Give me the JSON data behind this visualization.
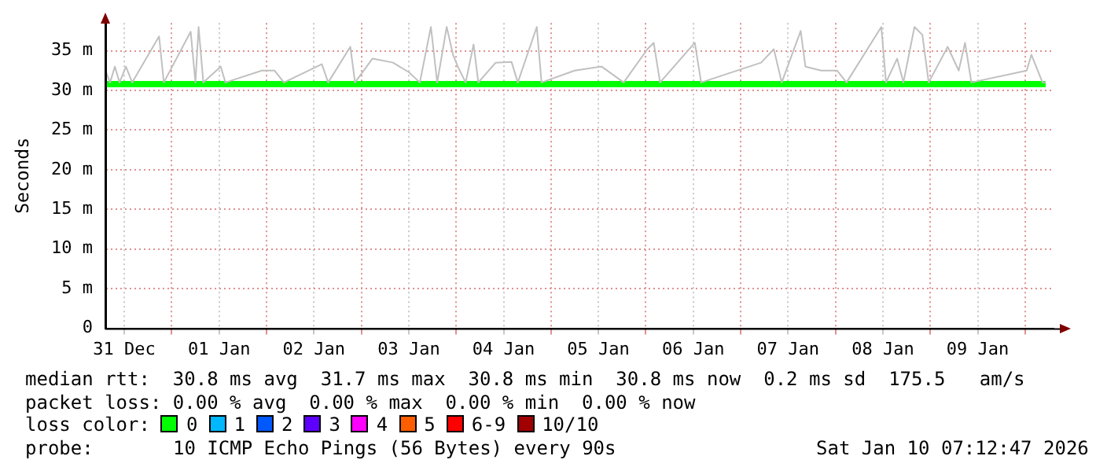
{
  "chart_data": {
    "type": "line",
    "ylabel": "Seconds",
    "xlim": [
      "2025-12-31T07:12",
      "2026-01-10T07:12"
    ],
    "xticks": [
      {
        "value": "2025-12-31T12:00",
        "label": "31 Dec"
      },
      {
        "value": "2026-01-01T00:00",
        "label": null
      },
      {
        "value": "2026-01-01T12:00",
        "label": "01 Jan"
      },
      {
        "value": "2026-01-02T00:00",
        "label": null
      },
      {
        "value": "2026-01-02T12:00",
        "label": "02 Jan"
      },
      {
        "value": "2026-01-03T00:00",
        "label": null
      },
      {
        "value": "2026-01-03T12:00",
        "label": "03 Jan"
      },
      {
        "value": "2026-01-04T00:00",
        "label": null
      },
      {
        "value": "2026-01-04T12:00",
        "label": "04 Jan"
      },
      {
        "value": "2026-01-05T00:00",
        "label": null
      },
      {
        "value": "2026-01-05T12:00",
        "label": "05 Jan"
      },
      {
        "value": "2026-01-06T00:00",
        "label": null
      },
      {
        "value": "2026-01-06T12:00",
        "label": "06 Jan"
      },
      {
        "value": "2026-01-07T00:00",
        "label": null
      },
      {
        "value": "2026-01-07T12:00",
        "label": "07 Jan"
      },
      {
        "value": "2026-01-08T00:00",
        "label": null
      },
      {
        "value": "2026-01-08T12:00",
        "label": "08 Jan"
      },
      {
        "value": "2026-01-09T00:00",
        "label": null
      },
      {
        "value": "2026-01-09T12:00",
        "label": "09 Jan"
      },
      {
        "value": "2026-01-10T00:00",
        "label": null
      }
    ],
    "ylim": [
      0,
      38.5
    ],
    "yticks": [
      0,
      {
        "value": 5,
        "label": "5 m"
      },
      {
        "value": 10,
        "label": "10 m"
      },
      {
        "value": 15,
        "label": "15 m"
      },
      {
        "value": 20,
        "label": "20 m"
      },
      {
        "value": 25,
        "label": "25 m"
      },
      {
        "value": 30,
        "label": "30 m"
      },
      {
        "value": 35,
        "label": "35 m"
      }
    ],
    "grid": true,
    "legend": false,
    "marker": "none",
    "line_style": "solid",
    "series": [
      {
        "color": "#c0c0c0",
        "x": [
          "2025-12-31T07:12",
          "2025-12-31T08:24",
          "2025-12-31T09:36",
          "2025-12-31T10:48",
          "2025-12-31T12:24",
          "2025-12-31T14:00",
          "2025-12-31T20:48",
          "2025-12-31T22:00",
          "2026-01-01T04:48",
          "2026-01-01T06:00",
          "2026-01-01T06:48",
          "2026-01-01T08:00",
          "2026-01-01T12:24",
          "2026-01-01T13:36",
          "2026-01-01T22:48",
          "2026-01-02T02:00",
          "2026-01-02T04:24",
          "2026-01-02T14:00",
          "2026-01-02T15:36",
          "2026-01-02T21:12",
          "2026-01-02T22:24",
          "2026-01-03T02:48",
          "2026-01-03T08:00",
          "2026-01-03T12:00",
          "2026-01-03T14:48",
          "2026-01-03T17:36",
          "2026-01-03T19:12",
          "2026-01-03T21:36",
          "2026-01-03T23:12",
          "2026-01-04T00:24",
          "2026-01-04T02:24",
          "2026-01-04T04:24",
          "2026-01-04T05:36",
          "2026-01-04T10:00",
          "2026-01-04T14:00",
          "2026-01-04T15:36",
          "2026-01-04T20:24",
          "2026-01-04T21:36",
          "2026-01-05T06:00",
          "2026-01-05T12:48",
          "2026-01-05T18:24",
          "2026-01-06T00:24",
          "2026-01-06T02:00",
          "2026-01-06T03:36",
          "2026-01-06T12:24",
          "2026-01-06T14:00",
          "2026-01-07T05:12",
          "2026-01-07T08:24",
          "2026-01-07T10:24",
          "2026-01-07T15:12",
          "2026-01-07T16:24",
          "2026-01-07T20:24",
          "2026-01-08T00:24",
          "2026-01-08T02:48",
          "2026-01-08T11:36",
          "2026-01-08T12:48",
          "2026-01-08T15:36",
          "2026-01-08T17:12",
          "2026-01-08T20:00",
          "2026-01-08T22:00",
          "2026-01-08T23:36",
          "2026-01-09T04:24",
          "2026-01-09T07:12",
          "2026-01-09T08:48",
          "2026-01-09T10:24",
          "2026-01-10T00:24",
          "2026-01-10T01:36",
          "2026-01-10T04:24",
          "2026-01-10T05:12"
        ],
        "values": [
          32.5,
          31,
          33,
          31,
          33,
          31,
          36.8,
          31,
          37.4,
          31,
          38,
          31,
          33,
          31,
          32.5,
          32.5,
          31,
          33.3,
          31,
          35.5,
          31,
          34,
          33.5,
          32.3,
          31,
          38,
          31,
          38,
          34.5,
          33,
          31,
          35.8,
          31,
          33.5,
          33.6,
          31,
          38,
          31,
          32.5,
          33,
          31,
          35.2,
          36,
          31,
          36,
          31,
          33.5,
          35.2,
          31,
          37.5,
          33,
          32.5,
          32.5,
          31,
          38,
          31,
          34,
          31,
          38,
          37,
          31,
          35.5,
          32.5,
          36,
          31,
          32.5,
          34.5,
          31,
          31
        ]
      },
      {
        "color": "#00ff00",
        "x": [
          "2025-12-31T07:12",
          "2026-01-10T05:12"
        ],
        "values": [
          30.8,
          30.8
        ]
      }
    ],
    "annotations": [
      "median rtt:  30.8 ms avg  31.7 ms max  30.8 ms min  30.8 ms now  0.2 ms sd  175.5   am/s",
      "packet loss: 0.00 % avg  0.00 % max  0.00 % min  0.00 % now",
      "loss color:",
      "0",
      "1",
      "2",
      "3",
      "4",
      "5",
      "6-9",
      "10/10",
      "probe:",
      "10 ICMP Echo Pings (56 Bytes) every 90s",
      "Sat Jan 10 07:12:47 2026"
    ]
  }
}
